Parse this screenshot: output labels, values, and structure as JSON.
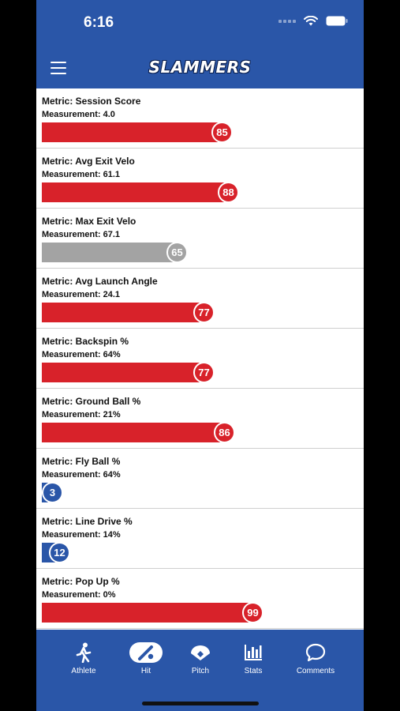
{
  "status": {
    "time": "6:16"
  },
  "header": {
    "logo": "SLAMMERS"
  },
  "metrics": [
    {
      "title": "Metric: Session Score",
      "measurement": "Measurement: 4.0",
      "score": "85",
      "score_value": 85,
      "color": "red"
    },
    {
      "title": "Metric: Avg Exit Velo",
      "measurement": "Measurement: 61.1",
      "score": "88",
      "score_value": 88,
      "color": "red"
    },
    {
      "title": "Metric: Max Exit Velo",
      "measurement": "Measurement: 67.1",
      "score": "65",
      "score_value": 65,
      "color": "gray"
    },
    {
      "title": "Metric: Avg Launch Angle",
      "measurement": "Measurement: 24.1",
      "score": "77",
      "score_value": 77,
      "color": "red"
    },
    {
      "title": "Metric: Backspin %",
      "measurement": "Measurement: 64%",
      "score": "77",
      "score_value": 77,
      "color": "red"
    },
    {
      "title": "Metric: Ground Ball %",
      "measurement": "Measurement: 21%",
      "score": "86",
      "score_value": 86,
      "color": "red"
    },
    {
      "title": "Metric: Fly Ball %",
      "measurement": "Measurement: 64%",
      "score": "3",
      "score_value": 3,
      "color": "blue"
    },
    {
      "title": "Metric: Line Drive %",
      "measurement": "Measurement: 14%",
      "score": "12",
      "score_value": 12,
      "color": "blue"
    },
    {
      "title": "Metric: Pop Up %",
      "measurement": "Measurement: 0%",
      "score": "99",
      "score_value": 99,
      "color": "red"
    }
  ],
  "tabs": [
    {
      "label": "Athlete",
      "icon": "runner-icon"
    },
    {
      "label": "Hit",
      "icon": "bat-ball-icon",
      "active": true
    },
    {
      "label": "Pitch",
      "icon": "baseball-diamond-icon"
    },
    {
      "label": "Stats",
      "icon": "bar-chart-icon"
    },
    {
      "label": "Comments",
      "icon": "speech-bubble-icon"
    }
  ],
  "colors": {
    "primary": "#2a56a8",
    "red": "#d8222a",
    "gray": "#a3a3a3"
  }
}
